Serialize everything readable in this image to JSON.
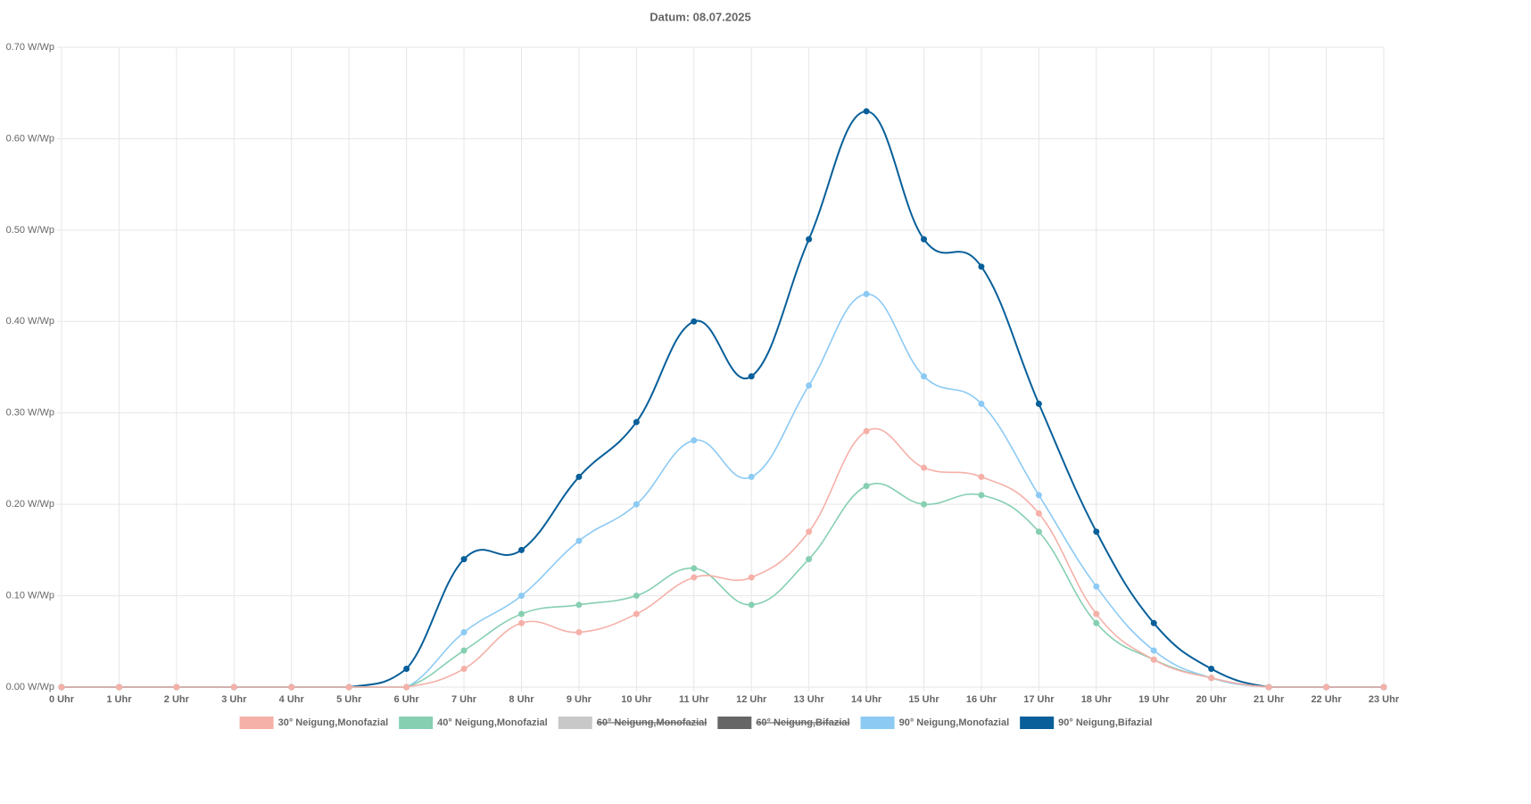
{
  "chart_data": {
    "type": "line",
    "title": "Datum: 08.07.2025",
    "categories": [
      "0 Uhr",
      "1 Uhr",
      "2 Uhr",
      "3 Uhr",
      "4 Uhr",
      "5 Uhr",
      "6 Uhr",
      "7 Uhr",
      "8 Uhr",
      "9 Uhr",
      "10 Uhr",
      "11 Uhr",
      "12 Uhr",
      "13 Uhr",
      "14 Uhr",
      "15 Uhr",
      "16 Uhr",
      "17 Uhr",
      "18 Uhr",
      "19 Uhr",
      "20 Uhr",
      "21 Uhr",
      "22 Uhr",
      "23 Uhr"
    ],
    "series": [
      {
        "name": "30° Neigung,Monofazial",
        "color": "#f5b0a8",
        "values": [
          0,
          0,
          0,
          0,
          0,
          0,
          0,
          0.02,
          0.07,
          0.06,
          0.08,
          0.12,
          0.12,
          0.17,
          0.28,
          0.24,
          0.23,
          0.19,
          0.08,
          0.03,
          0.01,
          0,
          0,
          0
        ]
      },
      {
        "name": "40° Neigung,Monofazial",
        "color": "#86cfb1",
        "values": [
          0,
          0,
          0,
          0,
          0,
          0,
          0,
          0.04,
          0.08,
          0.09,
          0.1,
          0.13,
          0.09,
          0.14,
          0.22,
          0.2,
          0.21,
          0.17,
          0.07,
          0.03,
          0.01,
          0,
          0,
          0
        ]
      },
      {
        "name": "60° Neigung,Monofazial",
        "color": "#c8c8c8",
        "hidden": true
      },
      {
        "name": "60° Neigung,Bifazial",
        "color": "#666666",
        "hidden": true
      },
      {
        "name": "90° Neigung,Monofazial",
        "color": "#8ccaf4",
        "values": [
          0,
          0,
          0,
          0,
          0,
          0,
          0,
          0.06,
          0.1,
          0.16,
          0.2,
          0.27,
          0.23,
          0.33,
          0.43,
          0.34,
          0.31,
          0.21,
          0.11,
          0.04,
          0.01,
          0,
          0,
          0
        ]
      },
      {
        "name": "90° Neigung,Bifazial",
        "color": "#085f99",
        "values": [
          0,
          0,
          0,
          0,
          0,
          0,
          0.02,
          0.14,
          0.15,
          0.23,
          0.29,
          0.4,
          0.34,
          0.49,
          0.63,
          0.49,
          0.46,
          0.31,
          0.17,
          0.07,
          0.02,
          0,
          0,
          0
        ]
      }
    ],
    "ylim": [
      0,
      0.7
    ],
    "yticks": [
      {
        "value": 0,
        "label": "0.00 W/Wp"
      },
      {
        "value": 0.1,
        "label": "0.10 W/Wp"
      },
      {
        "value": 0.2,
        "label": "0.20 W/Wp"
      },
      {
        "value": 0.3,
        "label": "0.30 W/Wp"
      },
      {
        "value": 0.4,
        "label": "0.40 W/Wp"
      },
      {
        "value": 0.5,
        "label": "0.50 W/Wp"
      },
      {
        "value": 0.6,
        "label": "0.60 W/Wp"
      },
      {
        "value": 0.7,
        "label": "0.70 W/Wp"
      }
    ],
    "grid": true,
    "legend": "bottom"
  }
}
